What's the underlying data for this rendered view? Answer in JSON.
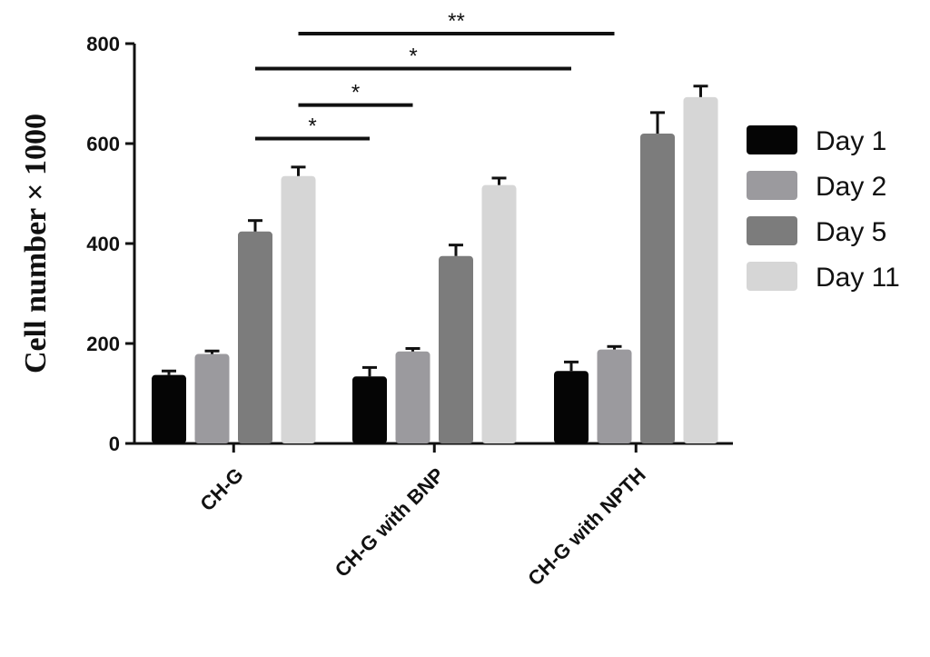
{
  "chart_data": {
    "type": "bar",
    "ylabel": "Cell number × 1000",
    "xlabel": "",
    "ylim": [
      0,
      800
    ],
    "yticks": [
      0,
      200,
      400,
      600,
      800
    ],
    "categories": [
      "CH-G",
      "CH-G with BNP",
      "CH-G with NPTH"
    ],
    "series": [
      {
        "name": "Day 1",
        "color": "#050505",
        "values": [
          137,
          134,
          145
        ],
        "errors": [
          8,
          18,
          18
        ]
      },
      {
        "name": "Day 2",
        "color": "#9b9a9e",
        "values": [
          179,
          184,
          188
        ],
        "errors": [
          6,
          6,
          6
        ]
      },
      {
        "name": "Day 5",
        "color": "#7c7c7c",
        "values": [
          424,
          375,
          620
        ],
        "errors": [
          22,
          22,
          42
        ]
      },
      {
        "name": "Day 11",
        "color": "#d6d6d6",
        "values": [
          535,
          517,
          693
        ],
        "errors": [
          18,
          14,
          22
        ]
      }
    ],
    "significance": [
      {
        "label": "*",
        "from": [
          0,
          2
        ],
        "to": [
          1,
          0
        ],
        "y": 610
      },
      {
        "label": "*",
        "from": [
          0,
          3
        ],
        "to": [
          1,
          1
        ],
        "y": 677
      },
      {
        "label": "*",
        "from": [
          0,
          2
        ],
        "to": [
          2,
          0
        ],
        "y": 750
      },
      {
        "label": "**",
        "from": [
          0,
          3
        ],
        "to": [
          2,
          1
        ],
        "y": 820
      }
    ],
    "legend_position": "right",
    "grid": false
  }
}
